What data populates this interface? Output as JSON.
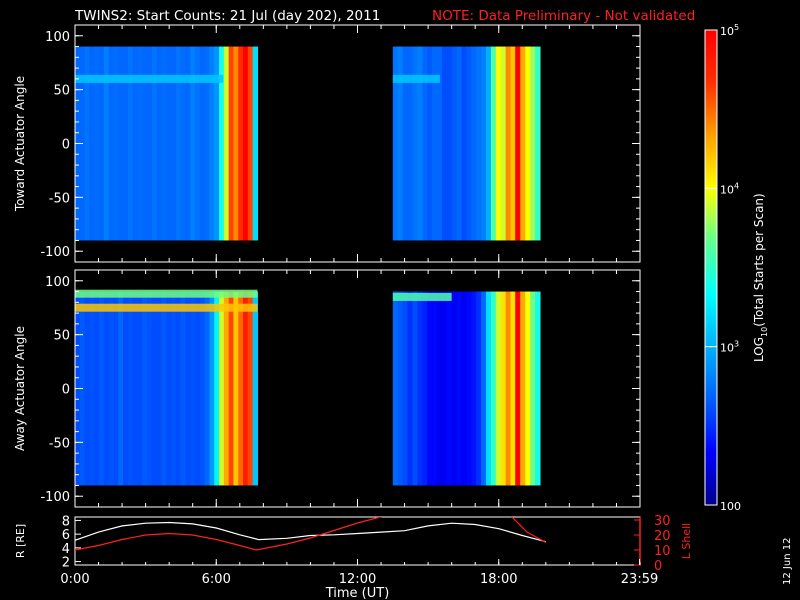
{
  "title": "TWINS2: Start Counts: 21 Jul (day 202), 2011",
  "note": "NOTE: Data Preliminary - Not validated",
  "colorbar": {
    "label": "LOG10(Total Starts per Scan)",
    "ticks": [
      "10^5",
      "10^4",
      "10^3",
      "100"
    ],
    "range": [
      100,
      100000
    ],
    "colors": [
      "#00008b",
      "#0000ff",
      "#0060ff",
      "#00b0ff",
      "#00ffff",
      "#60ff90",
      "#ffff00",
      "#ffa000",
      "#ff3000",
      "#ff0000"
    ]
  },
  "date_stamp": "12 Jun 12",
  "chart_data": [
    {
      "type": "heatmap",
      "ylabel": "Toward Actuator Angle",
      "yticks": [
        100,
        50,
        0,
        -50,
        -100
      ],
      "ylim": [
        -110,
        110
      ],
      "xlim": [
        0,
        24
      ],
      "data_extent_y": [
        -90,
        90
      ],
      "segments": [
        {
          "start_hour": 0.0,
          "end_hour": 7.75,
          "columns_log_counts": [
            2.7,
            2.7,
            2.75,
            2.7,
            2.72,
            2.7,
            2.8,
            2.7,
            2.72,
            2.7,
            2.7,
            2.75,
            2.7,
            2.72,
            2.7,
            2.7,
            2.75,
            2.7,
            2.72,
            2.7,
            2.7,
            2.75,
            2.72,
            2.7,
            2.8,
            2.75,
            2.7,
            2.72,
            2.8,
            2.9,
            3.4,
            3.9,
            4.6,
            4.4,
            4.7,
            5.0,
            4.6,
            3.2
          ],
          "features": [
            {
              "name": "band near +60",
              "y": 60,
              "from_hour": 0.0,
              "to_hour": 6.3,
              "log_counts": 3.1
            }
          ]
        },
        {
          "start_hour": 13.5,
          "end_hour": 19.75,
          "columns_log_counts": [
            2.75,
            2.8,
            2.7,
            2.7,
            2.75,
            2.8,
            2.7,
            2.65,
            2.7,
            2.7,
            2.6,
            2.6,
            2.65,
            2.7,
            2.6,
            2.65,
            2.7,
            2.75,
            2.8,
            3.0,
            3.6,
            4.0,
            3.9,
            4.4,
            4.2,
            4.8,
            4.3,
            4.0,
            3.8,
            3.5
          ],
          "features": [
            {
              "name": "band near +60",
              "y": 60,
              "from_hour": 13.5,
              "to_hour": 15.5,
              "log_counts": 3.1
            },
            {
              "name": "red streak",
              "y": null,
              "from_hour": 18.7,
              "to_hour": 18.9,
              "log_counts": 5.0
            }
          ]
        }
      ]
    },
    {
      "type": "heatmap",
      "ylabel": "Away Actuator Angle",
      "yticks": [
        100,
        50,
        0,
        -50,
        -100
      ],
      "ylim": [
        -110,
        110
      ],
      "xlim": [
        0,
        24
      ],
      "data_extent_y": [
        -90,
        90
      ],
      "segments": [
        {
          "start_hour": 0.0,
          "end_hour": 7.75,
          "columns_log_counts": [
            2.6,
            2.65,
            2.6,
            2.62,
            2.6,
            2.65,
            2.6,
            2.62,
            2.6,
            2.7,
            2.6,
            2.62,
            2.6,
            2.6,
            2.65,
            2.62,
            2.6,
            2.6,
            2.65,
            2.6,
            2.62,
            2.6,
            2.65,
            2.6,
            2.62,
            2.6,
            2.62,
            2.7,
            2.9,
            3.3,
            3.9,
            4.3,
            4.6,
            4.2,
            4.5,
            4.8,
            4.6,
            3.1
          ],
          "features": [
            {
              "name": "top band",
              "y": 75,
              "from_hour": 0.0,
              "to_hour": 7.75,
              "log_counts": 4.2
            },
            {
              "name": "upper band",
              "y": 88,
              "from_hour": 0.0,
              "to_hour": 7.75,
              "log_counts": 3.7
            }
          ]
        },
        {
          "start_hour": 13.5,
          "end_hour": 19.75,
          "columns_log_counts": [
            2.7,
            2.65,
            2.6,
            2.5,
            2.6,
            2.5,
            2.45,
            2.35,
            2.35,
            2.3,
            2.3,
            2.35,
            2.3,
            2.35,
            2.3,
            2.35,
            2.4,
            2.5,
            2.7,
            3.2,
            3.5,
            3.9,
            4.1,
            4.4,
            4.1,
            4.6,
            4.3,
            4.0,
            3.7,
            3.4
          ],
          "features": [
            {
              "name": "top band",
              "y": 85,
              "from_hour": 13.5,
              "to_hour": 16.0,
              "log_counts": 3.6
            },
            {
              "name": "red streak",
              "y": null,
              "from_hour": 18.7,
              "to_hour": 18.9,
              "log_counts": 5.0
            }
          ]
        }
      ]
    },
    {
      "type": "line",
      "ylabel_left": "R [RE]",
      "ylabel_right": "L Shell",
      "xlabel": "Time (UT)",
      "xticks": [
        "0:00",
        "6:00",
        "12:00",
        "18:00",
        "23:59"
      ],
      "xtick_hours": [
        0,
        6,
        12,
        18,
        23.98
      ],
      "yticks_left": [
        2,
        4,
        6,
        8
      ],
      "ylim_left": [
        1.5,
        8.5
      ],
      "yticks_right": [
        0,
        10,
        20,
        30
      ],
      "ylim_right": [
        0,
        32
      ],
      "series": [
        {
          "name": "R",
          "axis": "left",
          "color": "#ffffff",
          "x": [
            0,
            1,
            2,
            3,
            4,
            5,
            6,
            7,
            7.8,
            9,
            10,
            11,
            12,
            13,
            14,
            15,
            16,
            17,
            18,
            19,
            20
          ],
          "values": [
            5.1,
            6.3,
            7.2,
            7.6,
            7.7,
            7.5,
            6.9,
            5.9,
            5.2,
            5.4,
            5.8,
            5.9,
            6.1,
            6.3,
            6.5,
            7.2,
            7.6,
            7.4,
            6.8,
            5.8,
            4.9
          ]
        },
        {
          "name": "L Shell",
          "axis": "right",
          "color": "#ff2020",
          "x": [
            0,
            1,
            2,
            3,
            4,
            5,
            6,
            7,
            7.7,
            9,
            10,
            11,
            12,
            13.2
          ],
          "values": [
            10,
            13,
            17,
            20,
            21,
            20,
            17,
            13,
            10,
            14,
            18,
            23,
            28,
            33
          ]
        },
        {
          "name": "L Shell",
          "axis": "right",
          "color": "#ff2020",
          "x": [
            18.5,
            19.2,
            20
          ],
          "values": [
            33,
            22,
            15
          ]
        }
      ]
    }
  ]
}
